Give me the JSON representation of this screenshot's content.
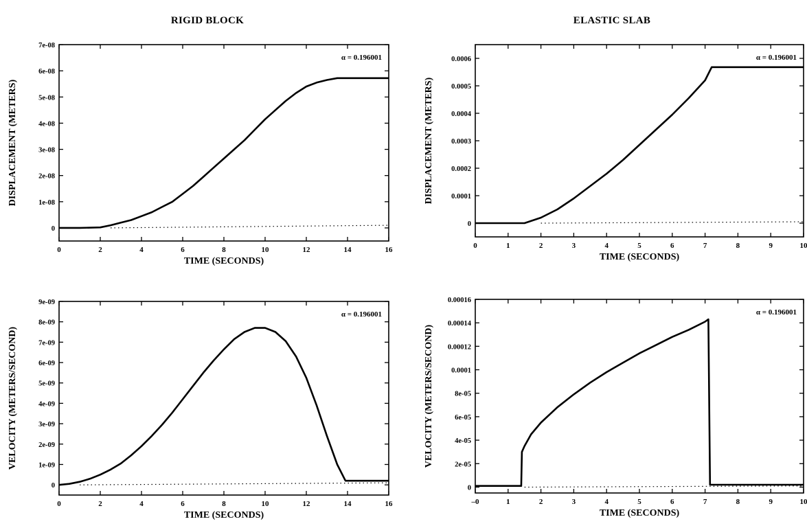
{
  "column_titles": {
    "left": "RIGID BLOCK",
    "right": "ELASTIC SLAB"
  },
  "chart_data": [
    {
      "id": "rigid-displacement",
      "type": "line",
      "title": "",
      "xlabel": "TIME (SECONDS)",
      "ylabel": "DISPLACEMENT (METERS)",
      "annotation": "α = 0.196001",
      "xlim": [
        0,
        16
      ],
      "ylim": [
        -5e-09,
        7e-08
      ],
      "xticks": [
        0,
        2,
        4,
        6,
        8,
        10,
        12,
        14,
        16
      ],
      "xticklabels": [
        "0",
        "2",
        "4",
        "6",
        "8",
        "10",
        "12",
        "14",
        "16"
      ],
      "yticks": [
        0,
        1e-08,
        2e-08,
        3e-08,
        4e-08,
        5e-08,
        6e-08,
        7e-08
      ],
      "yticklabels": [
        "0",
        "1e-08",
        "2e-08",
        "3e-08",
        "4e-08",
        "5e-08",
        "6e-08",
        "7e-08"
      ],
      "series": [
        {
          "style": "solid",
          "x": [
            0,
            1,
            2,
            2.5,
            3,
            3.5,
            4,
            4.5,
            5,
            5.5,
            6,
            6.5,
            7,
            7.5,
            8,
            8.5,
            9,
            9.5,
            10,
            10.5,
            11,
            11.5,
            12,
            12.5,
            13,
            13.5,
            14,
            15,
            16
          ],
          "y": [
            0,
            0,
            2e-10,
            1e-09,
            2e-09,
            3e-09,
            4.5e-09,
            6e-09,
            8e-09,
            1e-08,
            1.3e-08,
            1.6e-08,
            1.95e-08,
            2.3e-08,
            2.65e-08,
            3e-08,
            3.35e-08,
            3.75e-08,
            4.15e-08,
            4.5e-08,
            4.85e-08,
            5.15e-08,
            5.4e-08,
            5.55e-08,
            5.65e-08,
            5.72e-08,
            5.72e-08,
            5.72e-08,
            5.72e-08
          ]
        },
        {
          "style": "dotted",
          "x": [
            2.5,
            16
          ],
          "y": [
            0,
            1e-09
          ]
        }
      ]
    },
    {
      "id": "elastic-displacement",
      "type": "line",
      "title": "",
      "xlabel": "TIME (SECONDS)",
      "ylabel": "DISPLACEMENT (METERS)",
      "annotation": "α = 0.196001",
      "xlim": [
        0,
        10
      ],
      "ylim": [
        -5e-05,
        0.00065
      ],
      "xticks": [
        0,
        1,
        2,
        3,
        4,
        5,
        6,
        7,
        8,
        9,
        10
      ],
      "xticklabels": [
        "0",
        "1",
        "2",
        "3",
        "4",
        "5",
        "6",
        "7",
        "8",
        "9",
        "10"
      ],
      "yticks": [
        0,
        0.0001,
        0.0002,
        0.0003,
        0.0004,
        0.0005,
        0.0006
      ],
      "yticklabels": [
        "0",
        "0.0001",
        "0.0002",
        "0.0003",
        "0.0004",
        "0.0005",
        "0.0006"
      ],
      "series": [
        {
          "style": "solid",
          "x": [
            0,
            1.5,
            2,
            2.5,
            3,
            3.5,
            4,
            4.5,
            5,
            5.5,
            6,
            6.5,
            7,
            7.2,
            8,
            9,
            10
          ],
          "y": [
            0,
            0,
            2e-05,
            5e-05,
            9e-05,
            0.000135,
            0.00018,
            0.00023,
            0.000285,
            0.00034,
            0.000395,
            0.000455,
            0.00052,
            0.000568,
            0.000568,
            0.000568,
            0.000568
          ]
        },
        {
          "style": "dotted",
          "x": [
            2,
            10
          ],
          "y": [
            0,
            5e-06
          ]
        }
      ]
    },
    {
      "id": "rigid-velocity",
      "type": "line",
      "title": "",
      "xlabel": "TIME (SECONDS)",
      "ylabel": "VELOCITY (METERS/SECOND)",
      "annotation": "α = 0.196001",
      "xlim": [
        0,
        16
      ],
      "ylim": [
        -5e-10,
        9e-09
      ],
      "xticks": [
        0,
        2,
        4,
        6,
        8,
        10,
        12,
        14,
        16
      ],
      "xticklabels": [
        "0",
        "2",
        "4",
        "6",
        "8",
        "10",
        "12",
        "14",
        "16"
      ],
      "yticks": [
        0,
        1e-09,
        2e-09,
        3e-09,
        4e-09,
        5e-09,
        6e-09,
        7e-09,
        8e-09,
        9e-09
      ],
      "yticklabels": [
        "0",
        "1e-09",
        "2e-09",
        "3e-09",
        "4e-09",
        "5e-09",
        "6e-09",
        "7e-09",
        "8e-09",
        "9e-09"
      ],
      "series": [
        {
          "style": "solid",
          "x": [
            0,
            0.5,
            1,
            1.5,
            2,
            2.5,
            3,
            3.5,
            4,
            4.5,
            5,
            5.5,
            6,
            6.5,
            7,
            7.5,
            8,
            8.5,
            9,
            9.5,
            10,
            10.5,
            11,
            11.5,
            12,
            12.5,
            13,
            13.5,
            13.9,
            14.5,
            16
          ],
          "y": [
            0,
            5e-11,
            1.5e-10,
            3e-10,
            5e-10,
            7.5e-10,
            1.05e-09,
            1.45e-09,
            1.9e-09,
            2.4e-09,
            2.95e-09,
            3.55e-09,
            4.2e-09,
            4.85e-09,
            5.5e-09,
            6.1e-09,
            6.65e-09,
            7.15e-09,
            7.5e-09,
            7.7e-09,
            7.7e-09,
            7.5e-09,
            7.05e-09,
            6.3e-09,
            5.25e-09,
            3.9e-09,
            2.4e-09,
            1e-09,
            2e-10,
            2e-10,
            2e-10
          ]
        },
        {
          "style": "dotted",
          "x": [
            1,
            16
          ],
          "y": [
            0,
            1e-10
          ]
        }
      ]
    },
    {
      "id": "elastic-velocity",
      "type": "line",
      "title": "",
      "xlabel": "TIME (SECONDS)",
      "ylabel": "VELOCITY (METERS/SECOND)",
      "annotation": "α = 0.196001",
      "xlim": [
        0,
        10
      ],
      "ylim": [
        -5e-06,
        0.00016
      ],
      "xticks": [
        0,
        1,
        2,
        3,
        4,
        5,
        6,
        7,
        8,
        9,
        10
      ],
      "xticklabels": [
        "–0",
        "1",
        "2",
        "3",
        "4",
        "5",
        "6",
        "7",
        "8",
        "9",
        "10"
      ],
      "yticks": [
        0,
        2e-05,
        4e-05,
        6e-05,
        8e-05,
        0.0001,
        0.00012,
        0.00014,
        0.00016
      ],
      "yticklabels": [
        "0",
        "2e-05",
        "4e-05",
        "6e-05",
        "8e-05",
        "0.0001",
        "0.00012",
        "0.00014",
        "0.00016"
      ],
      "series": [
        {
          "style": "solid",
          "x": [
            0,
            1.4,
            1.42,
            1.5,
            1.7,
            2,
            2.5,
            3,
            3.5,
            4,
            4.5,
            5,
            5.5,
            6,
            6.5,
            7,
            7.1,
            7.15,
            8,
            9,
            10
          ],
          "y": [
            1e-06,
            1e-06,
            3e-05,
            3.5e-05,
            4.5e-05,
            5.5e-05,
            6.8e-05,
            7.9e-05,
            8.9e-05,
            9.8e-05,
            0.000106,
            0.000114,
            0.000121,
            0.000128,
            0.000134,
            0.000141,
            0.000143,
            2e-06,
            2e-06,
            2e-06,
            2e-06
          ]
        },
        {
          "style": "dotted",
          "x": [
            1.5,
            10
          ],
          "y": [
            0,
            1e-06
          ]
        }
      ]
    }
  ]
}
